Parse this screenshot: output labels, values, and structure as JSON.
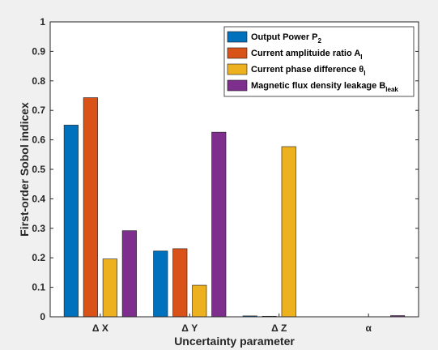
{
  "chart_data": {
    "type": "bar",
    "xlabel": "Uncertainty parameter",
    "ylabel": "First-order Sobol indicex",
    "ylim": [
      0,
      1
    ],
    "yticks": [
      "0",
      "0.1",
      "0.2",
      "0.3",
      "0.4",
      "0.5",
      "0.6",
      "0.7",
      "0.8",
      "0.9",
      "1"
    ],
    "categories": [
      "Δ X",
      "Δ Y",
      "Δ Z",
      "α"
    ],
    "legend_position": "top-right",
    "series": [
      {
        "name": "Output Power P",
        "name_sub": "2",
        "color": "#0072BD",
        "values": [
          0.65,
          0.223,
          0.003,
          0.0
        ]
      },
      {
        "name": "Current amplituide ratio A",
        "name_sub": "I",
        "color": "#D95319",
        "values": [
          0.743,
          0.231,
          0.002,
          0.0
        ]
      },
      {
        "name": "Current phase difference θ",
        "name_sub": "I",
        "color": "#EDB120",
        "values": [
          0.196,
          0.107,
          0.577,
          0.0
        ]
      },
      {
        "name": "Magnetic flux density leakage B",
        "name_sub": "leak",
        "color": "#7E2F8E",
        "values": [
          0.292,
          0.626,
          0.0,
          0.004
        ]
      }
    ]
  }
}
